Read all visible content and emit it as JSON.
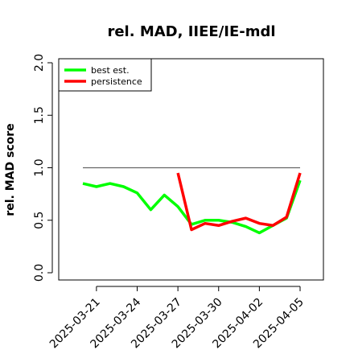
{
  "chart_data": {
    "type": "line",
    "title": "rel. MAD, IIEE/IE-mdl",
    "xlabel": "",
    "ylabel": "rel. MAD score",
    "x": [
      "2025-03-20",
      "2025-03-21",
      "2025-03-22",
      "2025-03-23",
      "2025-03-24",
      "2025-03-25",
      "2025-03-26",
      "2025-03-27",
      "2025-03-28",
      "2025-03-29",
      "2025-03-30",
      "2025-03-31",
      "2025-04-01",
      "2025-04-02",
      "2025-04-03",
      "2025-04-04",
      "2025-04-05"
    ],
    "xticks": [
      "2025-03-21",
      "2025-03-24",
      "2025-03-27",
      "2025-03-30",
      "2025-04-02",
      "2025-04-05"
    ],
    "yticks": [
      "0.0",
      "0.5",
      "1.0",
      "1.5",
      "2.0"
    ],
    "ylim": [
      0,
      2.0
    ],
    "reference_line": 1.0,
    "series": [
      {
        "name": "best est.",
        "color": "#00ff00",
        "values": [
          0.85,
          0.82,
          0.85,
          0.82,
          0.76,
          0.6,
          0.74,
          0.63,
          0.46,
          0.5,
          0.5,
          0.48,
          0.44,
          0.38,
          0.45,
          0.52,
          0.88
        ]
      },
      {
        "name": "persistence",
        "color": "#ff0000",
        "values": [
          null,
          null,
          null,
          null,
          null,
          null,
          null,
          0.95,
          0.41,
          0.47,
          0.45,
          0.49,
          0.52,
          0.47,
          0.45,
          0.53,
          0.95
        ]
      }
    ],
    "legend_position": "top-left",
    "grid": false
  }
}
